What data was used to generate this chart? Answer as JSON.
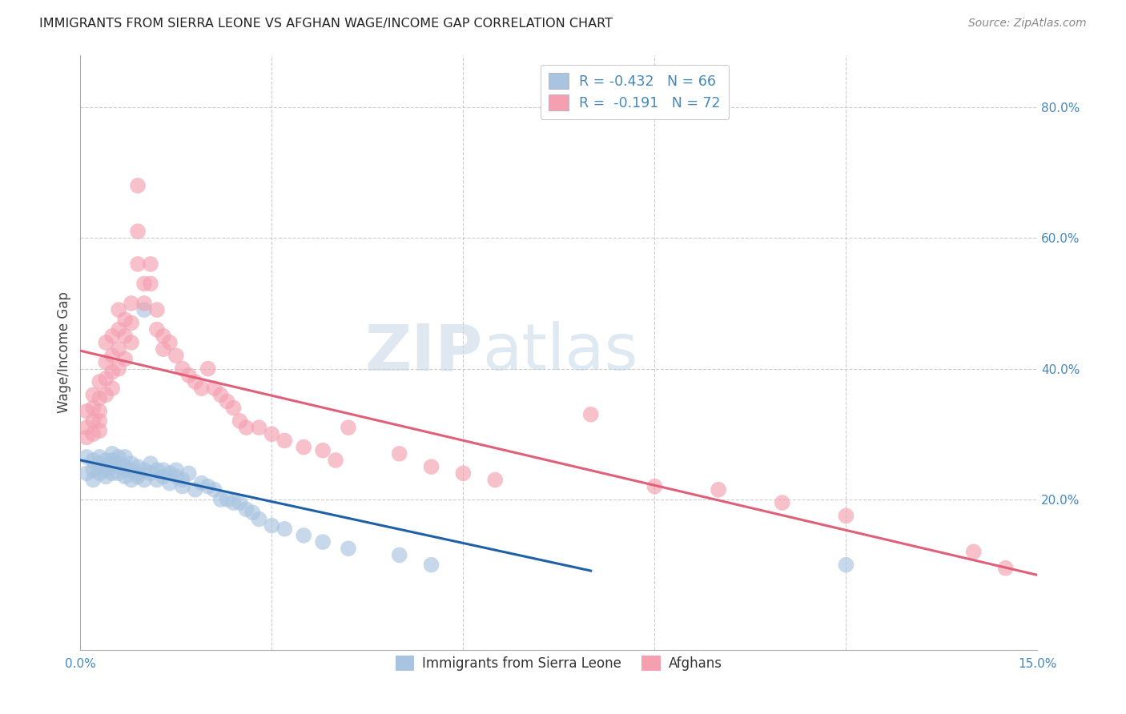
{
  "title": "IMMIGRANTS FROM SIERRA LEONE VS AFGHAN WAGE/INCOME GAP CORRELATION CHART",
  "source": "Source: ZipAtlas.com",
  "ylabel": "Wage/Income Gap",
  "xlim": [
    0.0,
    0.15
  ],
  "ylim": [
    -0.03,
    0.88
  ],
  "yticks_right": [
    0.2,
    0.4,
    0.6,
    0.8
  ],
  "ytick_labels_right": [
    "20.0%",
    "40.0%",
    "60.0%",
    "80.0%"
  ],
  "xticks": [
    0.0,
    0.03,
    0.06,
    0.09,
    0.12,
    0.15
  ],
  "xtick_labels": [
    "0.0%",
    "",
    "",
    "",
    "",
    "15.0%"
  ],
  "r_sierra": -0.432,
  "n_sierra": 66,
  "r_afghan": -0.191,
  "n_afghan": 72,
  "color_sierra": "#a8c4e0",
  "color_afghan": "#f4a0b0",
  "line_color_sierra": "#2060a8",
  "line_color_afghan": "#e0607a",
  "bg_color": "#ffffff",
  "watermark_zip": "ZIP",
  "watermark_atlas": "atlas",
  "sierra_scatter_x": [
    0.001,
    0.001,
    0.002,
    0.002,
    0.002,
    0.003,
    0.003,
    0.003,
    0.003,
    0.004,
    0.004,
    0.004,
    0.004,
    0.005,
    0.005,
    0.005,
    0.005,
    0.006,
    0.006,
    0.006,
    0.006,
    0.007,
    0.007,
    0.007,
    0.007,
    0.008,
    0.008,
    0.008,
    0.009,
    0.009,
    0.009,
    0.01,
    0.01,
    0.01,
    0.011,
    0.011,
    0.012,
    0.012,
    0.013,
    0.013,
    0.014,
    0.014,
    0.015,
    0.015,
    0.016,
    0.016,
    0.017,
    0.018,
    0.019,
    0.02,
    0.021,
    0.022,
    0.023,
    0.024,
    0.025,
    0.026,
    0.027,
    0.028,
    0.03,
    0.032,
    0.035,
    0.038,
    0.042,
    0.05,
    0.055,
    0.12
  ],
  "sierra_scatter_y": [
    0.265,
    0.24,
    0.245,
    0.23,
    0.26,
    0.255,
    0.24,
    0.265,
    0.25,
    0.245,
    0.26,
    0.25,
    0.235,
    0.255,
    0.24,
    0.27,
    0.26,
    0.25,
    0.24,
    0.265,
    0.255,
    0.25,
    0.235,
    0.245,
    0.265,
    0.23,
    0.245,
    0.255,
    0.24,
    0.25,
    0.235,
    0.49,
    0.245,
    0.23,
    0.255,
    0.24,
    0.23,
    0.245,
    0.245,
    0.235,
    0.24,
    0.225,
    0.235,
    0.245,
    0.23,
    0.22,
    0.24,
    0.215,
    0.225,
    0.22,
    0.215,
    0.2,
    0.2,
    0.195,
    0.195,
    0.185,
    0.18,
    0.17,
    0.16,
    0.155,
    0.145,
    0.135,
    0.125,
    0.115,
    0.1,
    0.1
  ],
  "afghan_scatter_x": [
    0.001,
    0.001,
    0.001,
    0.002,
    0.002,
    0.002,
    0.002,
    0.003,
    0.003,
    0.003,
    0.003,
    0.003,
    0.004,
    0.004,
    0.004,
    0.004,
    0.005,
    0.005,
    0.005,
    0.005,
    0.006,
    0.006,
    0.006,
    0.006,
    0.007,
    0.007,
    0.007,
    0.008,
    0.008,
    0.008,
    0.009,
    0.009,
    0.009,
    0.01,
    0.01,
    0.011,
    0.011,
    0.012,
    0.012,
    0.013,
    0.013,
    0.014,
    0.015,
    0.016,
    0.017,
    0.018,
    0.019,
    0.02,
    0.021,
    0.022,
    0.023,
    0.024,
    0.025,
    0.026,
    0.028,
    0.03,
    0.032,
    0.035,
    0.038,
    0.04,
    0.042,
    0.05,
    0.055,
    0.06,
    0.065,
    0.08,
    0.09,
    0.1,
    0.11,
    0.12,
    0.14,
    0.145
  ],
  "afghan_scatter_y": [
    0.335,
    0.31,
    0.295,
    0.36,
    0.34,
    0.32,
    0.3,
    0.38,
    0.355,
    0.335,
    0.32,
    0.305,
    0.44,
    0.41,
    0.385,
    0.36,
    0.45,
    0.42,
    0.395,
    0.37,
    0.49,
    0.46,
    0.43,
    0.4,
    0.475,
    0.45,
    0.415,
    0.5,
    0.47,
    0.44,
    0.68,
    0.61,
    0.56,
    0.53,
    0.5,
    0.56,
    0.53,
    0.49,
    0.46,
    0.45,
    0.43,
    0.44,
    0.42,
    0.4,
    0.39,
    0.38,
    0.37,
    0.4,
    0.37,
    0.36,
    0.35,
    0.34,
    0.32,
    0.31,
    0.31,
    0.3,
    0.29,
    0.28,
    0.275,
    0.26,
    0.31,
    0.27,
    0.25,
    0.24,
    0.23,
    0.33,
    0.22,
    0.215,
    0.195,
    0.175,
    0.12,
    0.095
  ]
}
